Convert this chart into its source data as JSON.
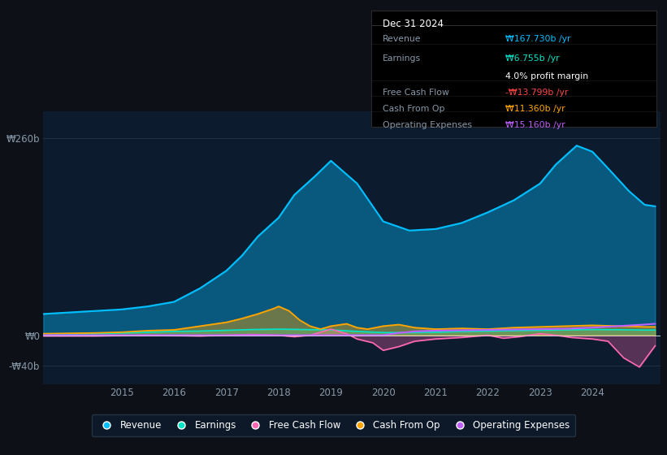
{
  "background_color": "#0d1117",
  "chart_bg_color": "#0d1b2e",
  "title": "Dec 31 2024",
  "tooltip": {
    "Revenue": {
      "value": "₩167.730b /yr",
      "color": "#00bfff"
    },
    "Earnings": {
      "value": "₩6.755b /yr",
      "color": "#00e5c8"
    },
    "profit_margin": "4.0% profit margin",
    "Free Cash Flow": {
      "value": "-₩13.799b /yr",
      "color": "#ff4444"
    },
    "Cash From Op": {
      "value": "₩11.360b /yr",
      "color": "#ffa500"
    },
    "Operating Expenses": {
      "value": "₩15.160b /yr",
      "color": "#bf5fff"
    }
  },
  "x_min": 2013.5,
  "x_max": 2025.3,
  "y_min": -65,
  "y_max": 295,
  "ytick_labels": [
    "₩260b",
    "₩0",
    "-₩40b"
  ],
  "ytick_values": [
    260,
    0,
    -40
  ],
  "xtick_labels": [
    "2015",
    "2016",
    "2017",
    "2018",
    "2019",
    "2020",
    "2021",
    "2022",
    "2023",
    "2024"
  ],
  "xtick_values": [
    2015,
    2016,
    2017,
    2018,
    2019,
    2020,
    2021,
    2022,
    2023,
    2024
  ],
  "legend": [
    {
      "label": "Revenue",
      "color": "#00bfff"
    },
    {
      "label": "Earnings",
      "color": "#00e5c8"
    },
    {
      "label": "Free Cash Flow",
      "color": "#ff69b4"
    },
    {
      "label": "Cash From Op",
      "color": "#ffa500"
    },
    {
      "label": "Operating Expenses",
      "color": "#bf5fff"
    }
  ],
  "revenue": {
    "x": [
      2013.5,
      2014.0,
      2014.5,
      2015.0,
      2015.5,
      2016.0,
      2016.5,
      2017.0,
      2017.3,
      2017.6,
      2018.0,
      2018.3,
      2018.7,
      2019.0,
      2019.5,
      2020.0,
      2020.5,
      2021.0,
      2021.5,
      2022.0,
      2022.5,
      2023.0,
      2023.3,
      2023.7,
      2024.0,
      2024.3,
      2024.7,
      2025.0,
      2025.2
    ],
    "y": [
      28,
      30,
      32,
      34,
      38,
      44,
      62,
      85,
      105,
      130,
      155,
      185,
      210,
      230,
      200,
      150,
      138,
      140,
      148,
      162,
      178,
      200,
      225,
      250,
      242,
      220,
      190,
      172,
      170
    ]
  },
  "earnings": {
    "x": [
      2013.5,
      2014.0,
      2014.5,
      2015.0,
      2015.5,
      2016.0,
      2016.5,
      2017.0,
      2017.5,
      2018.0,
      2018.5,
      2019.0,
      2019.5,
      2020.0,
      2020.5,
      2021.0,
      2021.5,
      2022.0,
      2022.5,
      2023.0,
      2023.5,
      2024.0,
      2024.5,
      2025.0,
      2025.2
    ],
    "y": [
      1,
      1.5,
      2,
      3,
      4,
      5,
      5.5,
      6.5,
      7.5,
      8,
      7.5,
      7,
      5,
      3.5,
      3.5,
      4,
      5,
      5.5,
      6,
      6.5,
      7,
      7.5,
      7.2,
      6.8,
      6.8
    ]
  },
  "free_cash_flow": {
    "x": [
      2013.5,
      2014.0,
      2014.5,
      2015.0,
      2015.5,
      2016.0,
      2016.5,
      2017.0,
      2017.5,
      2018.0,
      2018.3,
      2018.6,
      2019.0,
      2019.3,
      2019.5,
      2019.8,
      2020.0,
      2020.3,
      2020.6,
      2021.0,
      2021.5,
      2022.0,
      2022.3,
      2022.6,
      2023.0,
      2023.3,
      2023.6,
      2024.0,
      2024.3,
      2024.6,
      2024.9,
      2025.2
    ],
    "y": [
      -1,
      -1,
      -1,
      -0.5,
      0,
      -0.5,
      -1,
      0,
      1,
      0,
      -2,
      0,
      8,
      2,
      -5,
      -10,
      -20,
      -15,
      -8,
      -5,
      -3,
      0,
      -4,
      -2,
      2,
      0,
      -3,
      -5,
      -8,
      -30,
      -42,
      -14
    ]
  },
  "cash_from_op": {
    "x": [
      2013.5,
      2014.0,
      2014.5,
      2015.0,
      2015.5,
      2016.0,
      2016.3,
      2016.6,
      2017.0,
      2017.3,
      2017.6,
      2017.9,
      2018.0,
      2018.2,
      2018.4,
      2018.6,
      2018.8,
      2019.0,
      2019.3,
      2019.5,
      2019.7,
      2020.0,
      2020.3,
      2020.6,
      2021.0,
      2021.5,
      2022.0,
      2022.5,
      2023.0,
      2023.5,
      2024.0,
      2024.5,
      2025.0,
      2025.2
    ],
    "y": [
      2,
      2.5,
      3,
      4,
      6,
      7,
      10,
      13,
      17,
      22,
      28,
      35,
      38,
      32,
      20,
      12,
      8,
      12,
      15,
      10,
      8,
      12,
      14,
      10,
      8,
      9,
      8,
      10,
      11,
      12,
      13,
      12,
      11,
      11
    ]
  },
  "operating_expenses": {
    "x": [
      2013.5,
      2014.0,
      2014.5,
      2015.0,
      2015.5,
      2016.0,
      2016.5,
      2017.0,
      2017.5,
      2018.0,
      2018.5,
      2019.0,
      2019.5,
      2020.0,
      2020.3,
      2020.6,
      2021.0,
      2021.5,
      2022.0,
      2022.5,
      2023.0,
      2023.5,
      2024.0,
      2024.5,
      2025.0,
      2025.2
    ],
    "y": [
      0,
      0,
      0,
      0,
      0,
      0,
      0,
      0,
      0,
      0,
      0,
      0,
      0,
      0,
      3,
      5,
      6,
      6.5,
      7,
      7.5,
      8,
      8.5,
      10,
      12,
      14,
      15
    ]
  }
}
